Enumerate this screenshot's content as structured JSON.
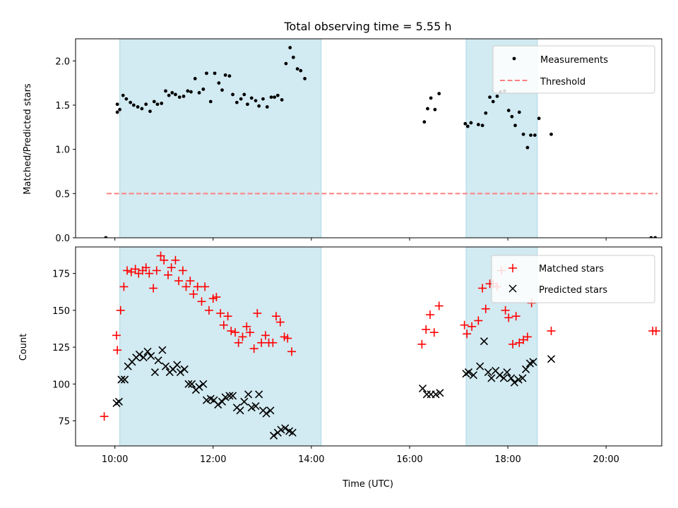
{
  "title": "Total observing time = 5.55 h",
  "colors": {
    "band": "#add8e6",
    "measurement": "#000000",
    "threshold": "#ff7f7f",
    "matched": "#ff0000",
    "predicted": "#000000"
  },
  "chart_data": [
    {
      "type": "scatter",
      "xlabel": "",
      "ylabel": "Matched/Predicted stars",
      "xlim": [
        "09:12",
        "21:08"
      ],
      "ylim": [
        0,
        2.25
      ],
      "yticks": [
        "0.0",
        "0.5",
        "1.0",
        "1.5",
        "2.0"
      ],
      "legend": {
        "placement": "top-right",
        "entries": [
          "Measurements",
          "Threshold"
        ]
      },
      "shaded_intervals": [
        [
          "10:06",
          "14:12"
        ],
        [
          "17:09",
          "18:36"
        ]
      ],
      "threshold": {
        "value": 0.5,
        "x_range": [
          "09:50",
          "21:03"
        ]
      },
      "series": [
        {
          "name": "Measurements",
          "marker": "dot",
          "points": [
            [
              "09:49",
              0.0
            ],
            [
              "10:03",
              1.51
            ],
            [
              "10:03",
              1.42
            ],
            [
              "10:06",
              1.45
            ],
            [
              "10:10",
              1.61
            ],
            [
              "10:14",
              1.57
            ],
            [
              "10:19",
              1.53
            ],
            [
              "10:23",
              1.5
            ],
            [
              "10:28",
              1.48
            ],
            [
              "10:33",
              1.46
            ],
            [
              "10:38",
              1.51
            ],
            [
              "10:43",
              1.43
            ],
            [
              "10:48",
              1.54
            ],
            [
              "10:52",
              1.51
            ],
            [
              "10:57",
              1.52
            ],
            [
              "11:02",
              1.66
            ],
            [
              "11:06",
              1.61
            ],
            [
              "11:10",
              1.64
            ],
            [
              "11:14",
              1.62
            ],
            [
              "11:19",
              1.59
            ],
            [
              "11:24",
              1.6
            ],
            [
              "11:29",
              1.66
            ],
            [
              "11:33",
              1.65
            ],
            [
              "11:38",
              1.8
            ],
            [
              "11:43",
              1.64
            ],
            [
              "11:48",
              1.68
            ],
            [
              "11:52",
              1.86
            ],
            [
              "11:57",
              1.54
            ],
            [
              "12:02",
              1.86
            ],
            [
              "12:07",
              1.75
            ],
            [
              "12:11",
              1.67
            ],
            [
              "12:15",
              1.84
            ],
            [
              "12:20",
              1.83
            ],
            [
              "12:24",
              1.62
            ],
            [
              "12:29",
              1.53
            ],
            [
              "12:34",
              1.57
            ],
            [
              "12:38",
              1.62
            ],
            [
              "12:42",
              1.51
            ],
            [
              "12:47",
              1.58
            ],
            [
              "12:52",
              1.55
            ],
            [
              "12:56",
              1.49
            ],
            [
              "13:01",
              1.57
            ],
            [
              "13:06",
              1.48
            ],
            [
              "13:11",
              1.59
            ],
            [
              "13:15",
              1.59
            ],
            [
              "13:19",
              1.61
            ],
            [
              "13:24",
              1.56
            ],
            [
              "13:29",
              1.97
            ],
            [
              "13:34",
              2.15
            ],
            [
              "13:38",
              2.04
            ],
            [
              "13:43",
              1.91
            ],
            [
              "13:47",
              1.89
            ],
            [
              "13:52",
              1.8
            ],
            [
              "16:18",
              1.31
            ],
            [
              "16:22",
              1.46
            ],
            [
              "16:26",
              1.58
            ],
            [
              "16:31",
              1.45
            ],
            [
              "16:36",
              1.63
            ],
            [
              "17:08",
              1.29
            ],
            [
              "17:11",
              1.26
            ],
            [
              "17:15",
              1.3
            ],
            [
              "17:24",
              1.28
            ],
            [
              "17:29",
              1.27
            ],
            [
              "17:33",
              1.41
            ],
            [
              "17:38",
              1.59
            ],
            [
              "17:42",
              1.54
            ],
            [
              "17:47",
              1.6
            ],
            [
              "17:51",
              1.65
            ],
            [
              "17:56",
              1.66
            ],
            [
              "18:01",
              1.44
            ],
            [
              "18:05",
              1.37
            ],
            [
              "18:09",
              1.27
            ],
            [
              "18:14",
              1.42
            ],
            [
              "18:19",
              1.17
            ],
            [
              "18:24",
              1.02
            ],
            [
              "18:28",
              1.16
            ],
            [
              "18:33",
              1.16
            ],
            [
              "18:38",
              1.35
            ],
            [
              "18:53",
              1.17
            ],
            [
              "20:55",
              0.0
            ],
            [
              "21:00",
              0.0
            ]
          ]
        }
      ]
    },
    {
      "type": "scatter",
      "xlabel": "Time (UTC)",
      "ylabel": "Count",
      "xlim": [
        "09:12",
        "21:08"
      ],
      "ylim": [
        58,
        193
      ],
      "yticks": [
        "75",
        "100",
        "125",
        "150",
        "175"
      ],
      "xticks": [
        "10:00",
        "12:00",
        "14:00",
        "16:00",
        "18:00",
        "20:00"
      ],
      "legend": {
        "placement": "top-right",
        "entries": [
          "Matched stars",
          "Predicted stars"
        ]
      },
      "shaded_intervals": [
        [
          "10:06",
          "14:12"
        ],
        [
          "17:09",
          "18:36"
        ]
      ],
      "series": [
        {
          "name": "Matched stars",
          "marker": "plus",
          "points": [
            [
              "09:47",
              78
            ],
            [
              "10:02",
              133
            ],
            [
              "10:03",
              123
            ],
            [
              "10:07",
              150
            ],
            [
              "10:11",
              166
            ],
            [
              "10:15",
              177
            ],
            [
              "10:20",
              176
            ],
            [
              "10:25",
              178
            ],
            [
              "10:29",
              175
            ],
            [
              "10:34",
              177
            ],
            [
              "10:38",
              179
            ],
            [
              "10:42",
              175
            ],
            [
              "10:47",
              165
            ],
            [
              "10:51",
              177
            ],
            [
              "10:56",
              187
            ],
            [
              "11:00",
              184
            ],
            [
              "11:05",
              174
            ],
            [
              "11:09",
              179
            ],
            [
              "11:14",
              184
            ],
            [
              "11:18",
              170
            ],
            [
              "11:23",
              177
            ],
            [
              "11:27",
              166
            ],
            [
              "11:32",
              170
            ],
            [
              "11:36",
              161
            ],
            [
              "11:41",
              166
            ],
            [
              "11:46",
              156
            ],
            [
              "11:50",
              166
            ],
            [
              "11:55",
              150
            ],
            [
              "12:00",
              158
            ],
            [
              "12:04",
              159
            ],
            [
              "12:09",
              148
            ],
            [
              "12:13",
              140
            ],
            [
              "12:18",
              146
            ],
            [
              "12:22",
              136
            ],
            [
              "12:27",
              135
            ],
            [
              "12:31",
              128
            ],
            [
              "12:36",
              132
            ],
            [
              "12:41",
              139
            ],
            [
              "12:45",
              135
            ],
            [
              "12:50",
              124
            ],
            [
              "12:54",
              148
            ],
            [
              "12:59",
              128
            ],
            [
              "13:04",
              133
            ],
            [
              "13:08",
              128
            ],
            [
              "13:13",
              128
            ],
            [
              "13:17",
              146
            ],
            [
              "13:22",
              142
            ],
            [
              "13:27",
              132
            ],
            [
              "13:31",
              131
            ],
            [
              "13:36",
              122
            ],
            [
              "16:15",
              127
            ],
            [
              "16:20",
              137
            ],
            [
              "16:25",
              147
            ],
            [
              "16:30",
              135
            ],
            [
              "16:36",
              153
            ],
            [
              "17:07",
              140
            ],
            [
              "17:10",
              134
            ],
            [
              "17:16",
              139
            ],
            [
              "17:24",
              143
            ],
            [
              "17:29",
              165
            ],
            [
              "17:33",
              151
            ],
            [
              "17:38",
              168
            ],
            [
              "17:42",
              168
            ],
            [
              "17:47",
              166
            ],
            [
              "17:52",
              177
            ],
            [
              "17:57",
              150
            ],
            [
              "18:01",
              145
            ],
            [
              "18:06",
              127
            ],
            [
              "18:10",
              146
            ],
            [
              "18:14",
              128
            ],
            [
              "18:19",
              130
            ],
            [
              "18:24",
              132
            ],
            [
              "18:29",
              155
            ],
            [
              "18:53",
              136
            ],
            [
              "20:57",
              136
            ],
            [
              "21:01",
              136
            ]
          ]
        },
        {
          "name": "Predicted stars",
          "marker": "x",
          "points": [
            [
              "10:02",
              87
            ],
            [
              "10:05",
              88
            ],
            [
              "10:08",
              103
            ],
            [
              "10:12",
              103
            ],
            [
              "10:16",
              112
            ],
            [
              "10:21",
              115
            ],
            [
              "10:26",
              118
            ],
            [
              "10:30",
              120
            ],
            [
              "10:35",
              118
            ],
            [
              "10:40",
              122
            ],
            [
              "10:44",
              119
            ],
            [
              "10:49",
              108
            ],
            [
              "10:53",
              116
            ],
            [
              "10:58",
              123
            ],
            [
              "11:02",
              112
            ],
            [
              "11:07",
              108
            ],
            [
              "11:11",
              110
            ],
            [
              "11:16",
              113
            ],
            [
              "11:20",
              108
            ],
            [
              "11:25",
              110
            ],
            [
              "11:30",
              100
            ],
            [
              "11:34",
              100
            ],
            [
              "11:39",
              96
            ],
            [
              "11:43",
              98
            ],
            [
              "11:48",
              100
            ],
            [
              "11:52",
              89
            ],
            [
              "11:57",
              90
            ],
            [
              "12:01",
              89
            ],
            [
              "12:06",
              86
            ],
            [
              "12:11",
              88
            ],
            [
              "12:15",
              91
            ],
            [
              "12:20",
              92
            ],
            [
              "12:24",
              92
            ],
            [
              "12:29",
              84
            ],
            [
              "12:33",
              82
            ],
            [
              "12:38",
              88
            ],
            [
              "12:43",
              93
            ],
            [
              "12:47",
              84
            ],
            [
              "12:52",
              85
            ],
            [
              "12:56",
              93
            ],
            [
              "13:01",
              82
            ],
            [
              "13:05",
              80
            ],
            [
              "13:10",
              82
            ],
            [
              "13:14",
              65
            ],
            [
              "13:19",
              67
            ],
            [
              "13:23",
              69
            ],
            [
              "13:28",
              70
            ],
            [
              "13:33",
              68
            ],
            [
              "13:37",
              67
            ],
            [
              "16:16",
              97
            ],
            [
              "16:21",
              93
            ],
            [
              "16:26",
              93
            ],
            [
              "16:32",
              93
            ],
            [
              "16:37",
              94
            ],
            [
              "17:09",
              107
            ],
            [
              "17:12",
              108
            ],
            [
              "17:18",
              106
            ],
            [
              "17:26",
              112
            ],
            [
              "17:31",
              129
            ],
            [
              "17:36",
              108
            ],
            [
              "17:40",
              104
            ],
            [
              "17:45",
              109
            ],
            [
              "17:50",
              106
            ],
            [
              "17:55",
              104
            ],
            [
              "17:59",
              108
            ],
            [
              "18:04",
              104
            ],
            [
              "18:08",
              101
            ],
            [
              "18:13",
              103
            ],
            [
              "18:18",
              104
            ],
            [
              "18:22",
              110
            ],
            [
              "18:27",
              114
            ],
            [
              "18:31",
              115
            ],
            [
              "18:53",
              117
            ]
          ]
        }
      ]
    }
  ]
}
